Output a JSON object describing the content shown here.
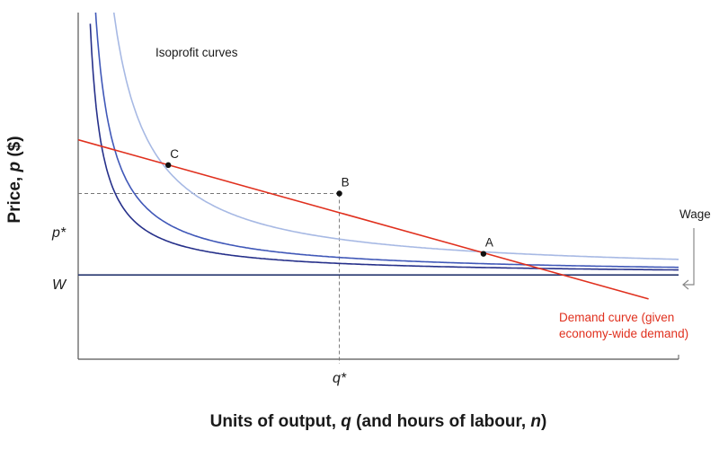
{
  "chart_data": {
    "type": "line",
    "title": "",
    "xlabel_parts": [
      "Units of output, ",
      "q",
      " (and hours of labour, ",
      "n",
      ")"
    ],
    "ylabel_parts": [
      "Price, ",
      "p",
      " ($)"
    ],
    "xlim": [
      0,
      100
    ],
    "ylim": [
      0,
      100
    ],
    "grid": false,
    "ticks": {
      "y": [
        {
          "label": "p*",
          "value": 47.8
        },
        {
          "label": "W",
          "value": 24.3
        }
      ],
      "x": [
        {
          "label": "q*",
          "value": 43.5
        }
      ]
    },
    "wage_label": "Wage",
    "isoprofit_label": "Isoprofit curves",
    "demand_label": [
      "Demand curve (given",
      "economy-wide demand)"
    ],
    "demand_curve": {
      "x": [
        0,
        95
      ],
      "y": [
        63.3,
        17.4
      ],
      "color": "#e0301e"
    },
    "isoprofit_curves": [
      {
        "constant": 145,
        "color": "#26308a"
      },
      {
        "constant": 220,
        "color": "#4058b8"
      },
      {
        "constant": 450,
        "color": "#a7b9e4"
      }
    ],
    "wage_line": {
      "y": 24.3,
      "color": "#27376f"
    },
    "points": [
      {
        "label": "C",
        "x": 15,
        "y": 56.0
      },
      {
        "label": "B",
        "x": 43.5,
        "y": 47.8
      },
      {
        "label": "A",
        "x": 67.5,
        "y": 30.4
      }
    ],
    "colors": {
      "demand": "#e0301e",
      "axis": "#555555",
      "dashed": "#777777"
    }
  }
}
